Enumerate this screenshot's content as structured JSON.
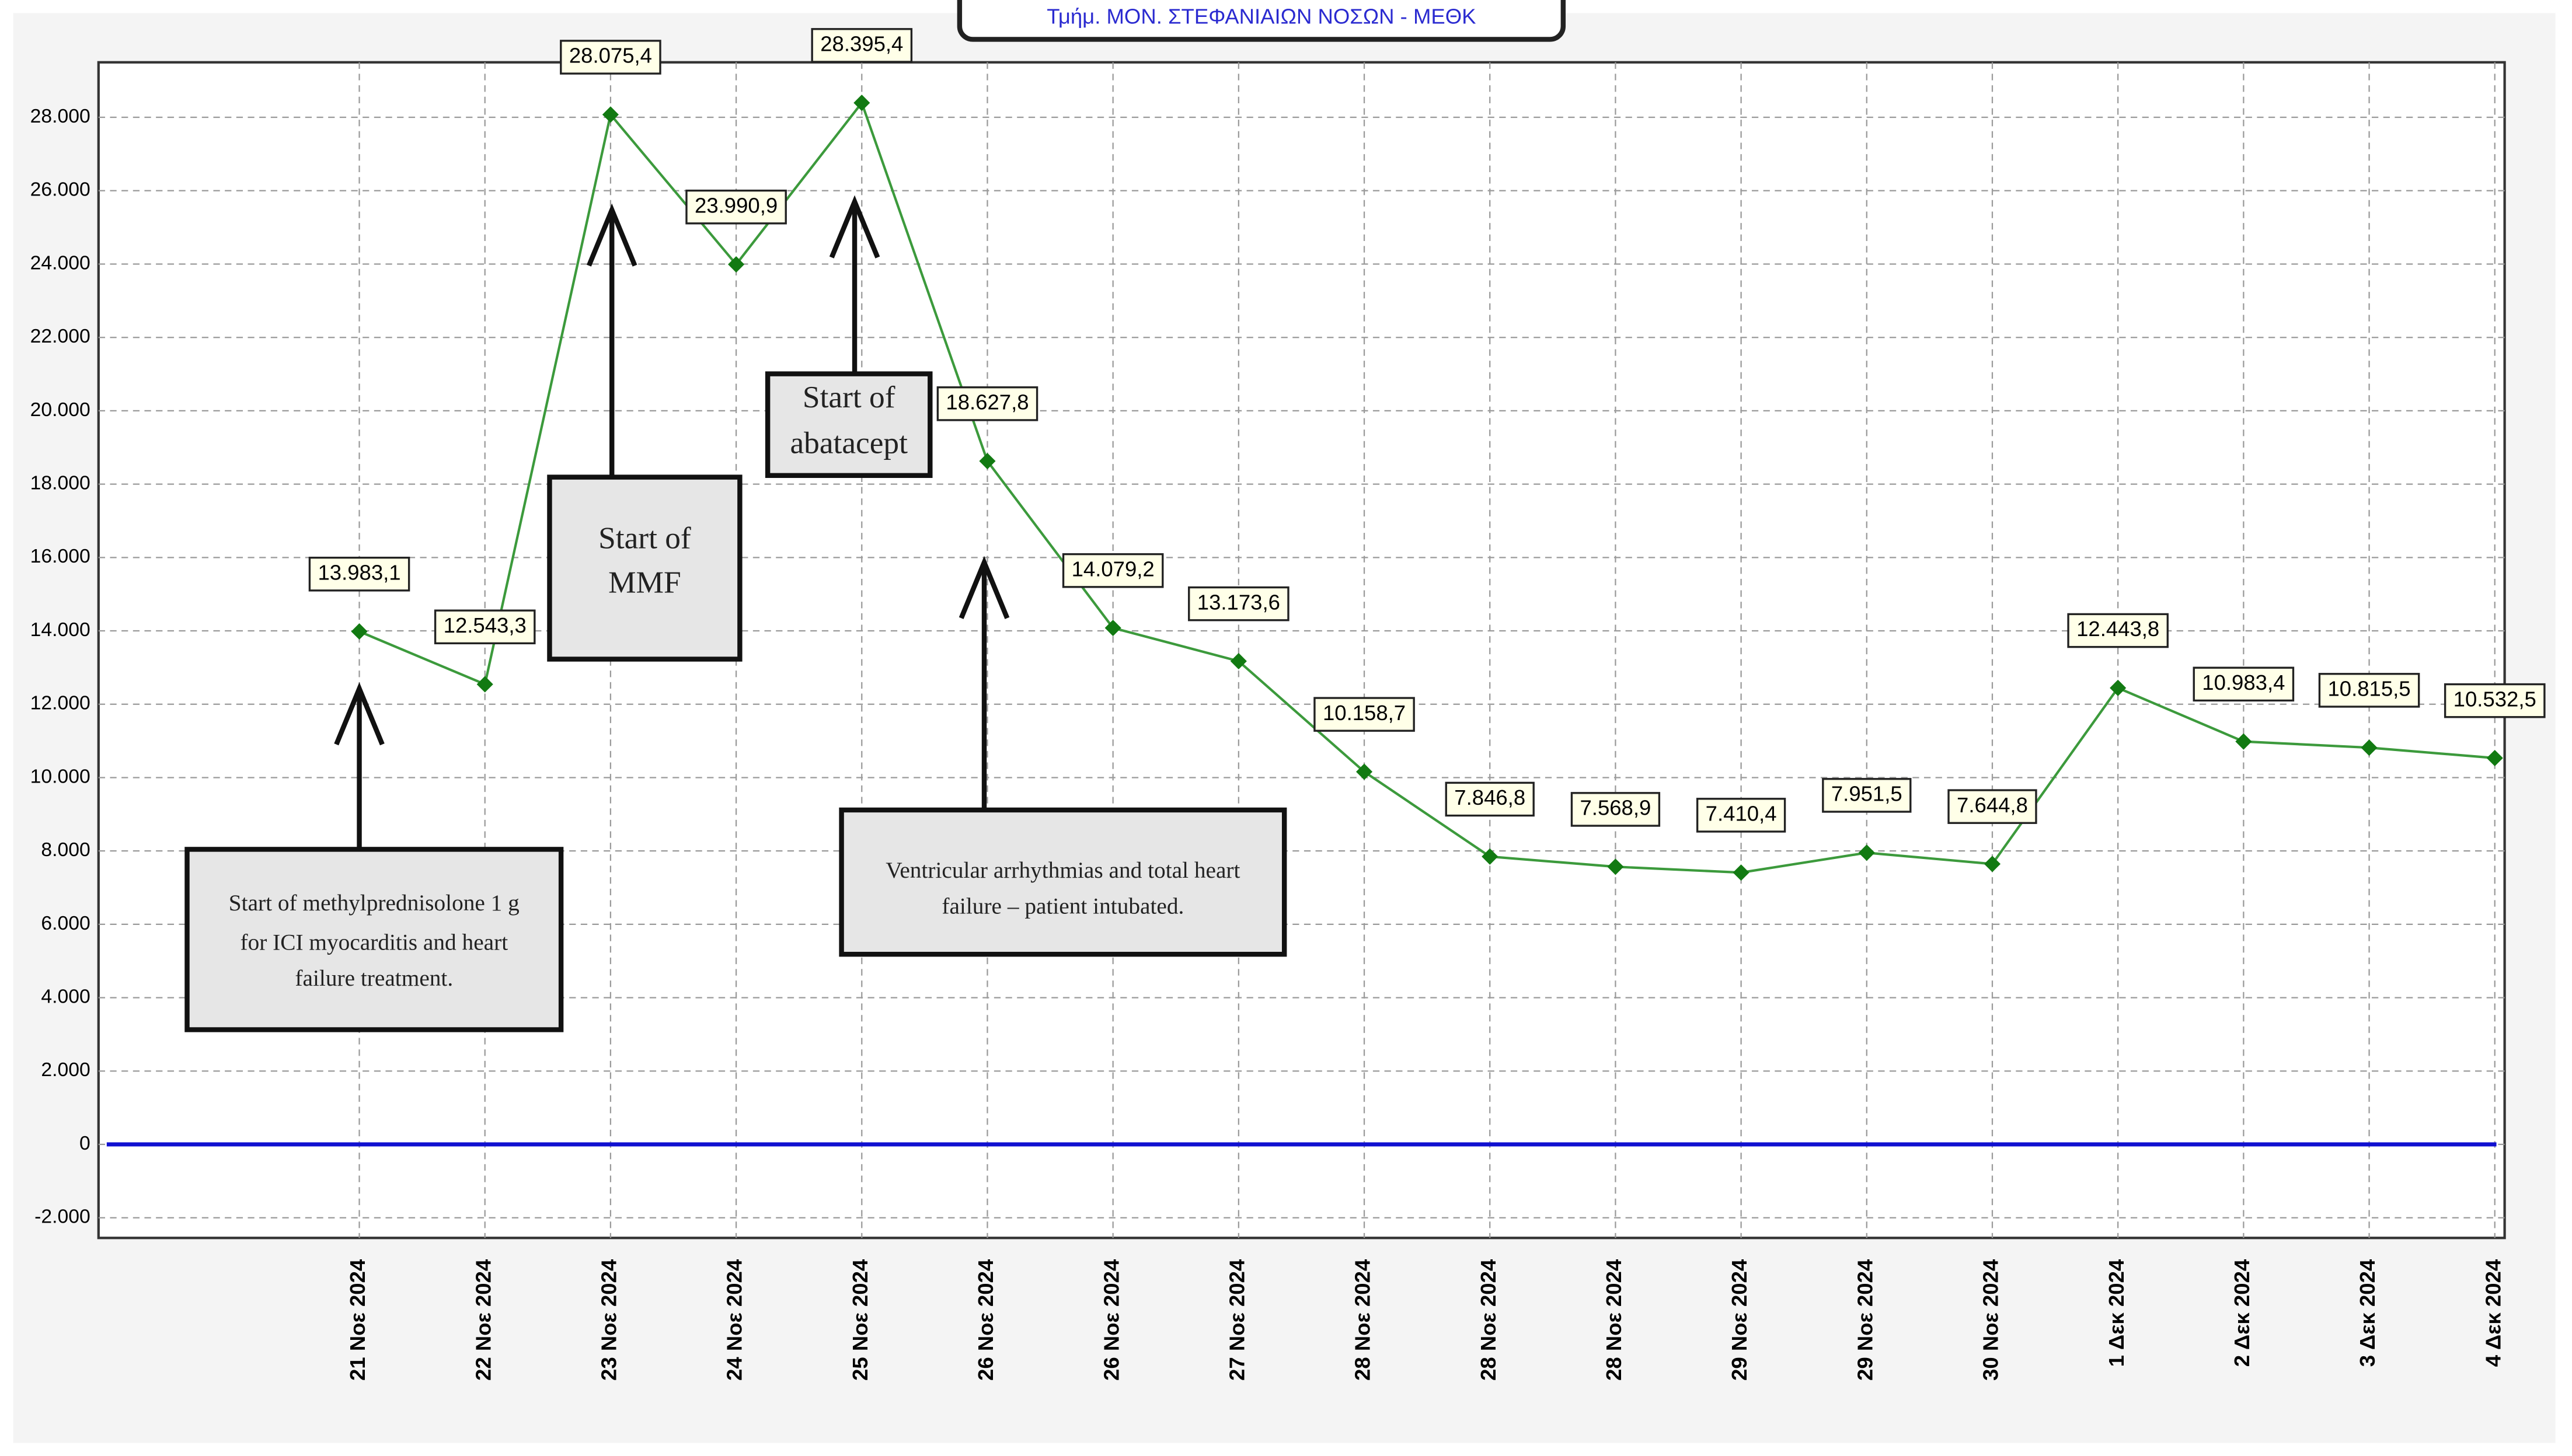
{
  "header": {
    "title": "Τμήμ. ΜΟΝ. ΣΤΕΦΑΝΙΑΙΩΝ ΝΟΣΩΝ - ΜΕΘΚ"
  },
  "chart_data": {
    "type": "line",
    "categories": [
      "21 Νοε 2024",
      "22 Νοε 2024",
      "23 Νοε 2024",
      "24 Νοε 2024",
      "25 Νοε 2024",
      "26 Νοε 2024",
      "26 Νοε 2024",
      "27 Νοε 2024",
      "28 Νοε 2024",
      "28 Νοε 2024",
      "28 Νοε 2024",
      "29 Νοε 2024",
      "29 Νοε 2024",
      "30 Νοε 2024",
      "1 Δεκ 2024",
      "2 Δεκ 2024",
      "3 Δεκ 2024",
      "4 Δεκ 2024"
    ],
    "values": [
      13983.1,
      12543.3,
      28075.4,
      23990.9,
      28395.4,
      18627.8,
      14079.2,
      13173.6,
      10158.7,
      7846.8,
      7568.9,
      7410.4,
      7951.5,
      7644.8,
      12443.8,
      10983.4,
      10815.5,
      10532.5
    ],
    "value_labels": [
      "13.983,1",
      "12.543,3",
      "28.075,4",
      "23.990,9",
      "28.395,4",
      "18.627,8",
      "14.079,2",
      "13.173,6",
      "10.158,7",
      "7.846,8",
      "7.568,9",
      "7.410,4",
      "7.951,5",
      "7.644,8",
      "12.443,8",
      "10.983,4",
      "10.815,5",
      "10.532,5"
    ],
    "color": "#3c9a3c",
    "marker_color": "#127a12",
    "zero_line_color": "#1010d0",
    "ylim": [
      -2550,
      29500
    ],
    "yticks": [
      {
        "value": -2000,
        "label": "-2.000"
      },
      0,
      {
        "value": 2000,
        "label": "2.000"
      },
      {
        "value": 4000,
        "label": "4.000"
      },
      {
        "value": 6000,
        "label": "6.000"
      },
      {
        "value": 8000,
        "label": "8.000"
      },
      {
        "value": 10000,
        "label": "10.000"
      },
      {
        "value": 12000,
        "label": "12.000"
      },
      {
        "value": 14000,
        "label": "14.000"
      },
      {
        "value": 16000,
        "label": "16.000"
      },
      {
        "value": 18000,
        "label": "18.000"
      },
      {
        "value": 20000,
        "label": "20.000"
      },
      {
        "value": 22000,
        "label": "22.000"
      },
      {
        "value": 24000,
        "label": "24.000"
      },
      {
        "value": 26000,
        "label": "26.000"
      },
      {
        "value": 28000,
        "label": "28.000"
      }
    ],
    "grid": true,
    "annotations": [
      {
        "lines": [
          "Start of methylprednisolone 1 g",
          "for ICI myocarditis and heart",
          "failure treatment."
        ]
      },
      {
        "lines": [
          "Start of",
          "MMF"
        ]
      },
      {
        "lines": [
          "Start of",
          "abatacept"
        ]
      },
      {
        "lines": [
          "Ventricular arrhythmias and total heart",
          "failure – patient intubated."
        ]
      }
    ]
  }
}
